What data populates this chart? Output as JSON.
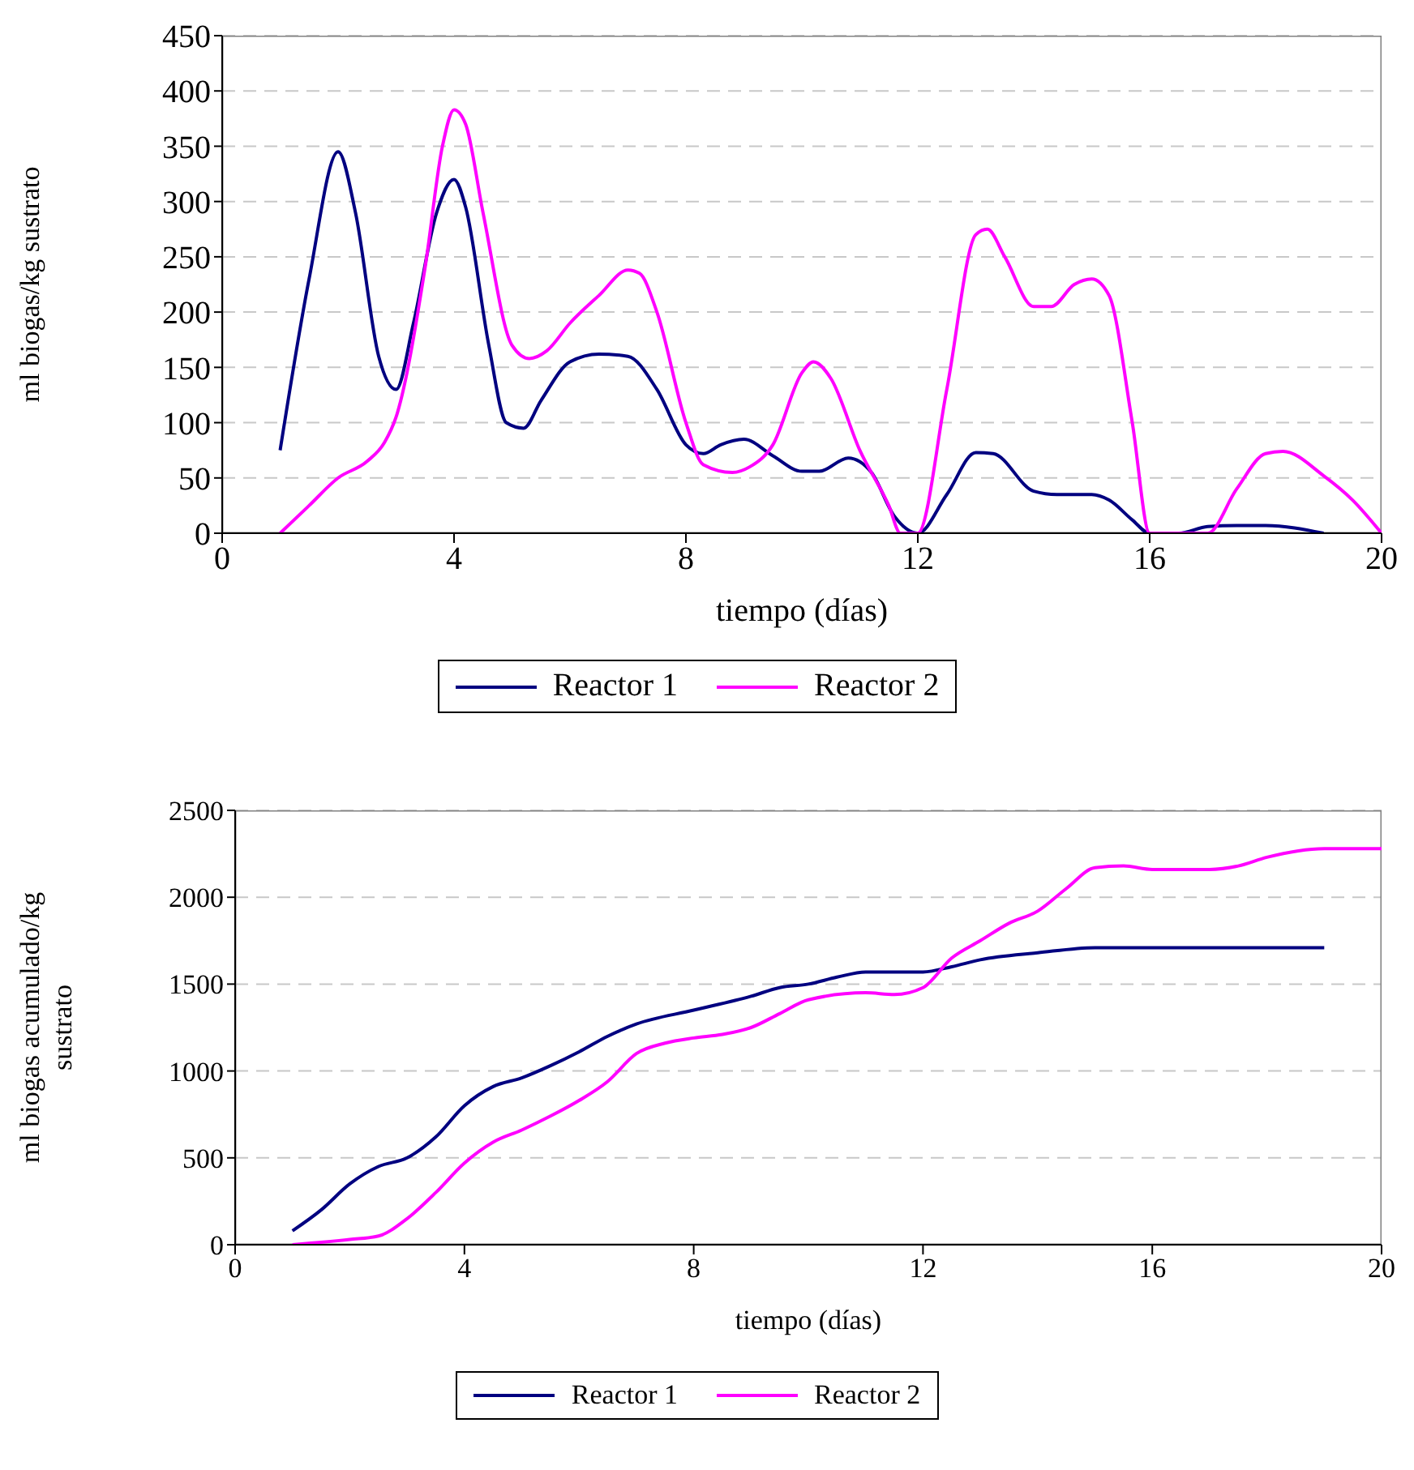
{
  "chart_data": [
    {
      "type": "line",
      "xlabel": "tiempo (días)",
      "ylabel": "ml biogas/kg sustrato",
      "xlim": [
        0,
        20
      ],
      "xticks": [
        0,
        4,
        8,
        12,
        16,
        20
      ],
      "ylim": [
        0,
        450
      ],
      "yticks": [
        0,
        50,
        100,
        150,
        200,
        250,
        300,
        350,
        400,
        450
      ],
      "grid": "y",
      "legend": "bottom",
      "marker": "none",
      "line_style": "solid",
      "series": [
        {
          "name": "Reactor 1",
          "color": "#000080",
          "x": [
            1,
            1.5,
            2,
            2.3,
            2.7,
            3,
            3.3,
            3.7,
            4,
            4.2,
            4.6,
            4.9,
            5.2,
            5.5,
            6,
            6.5,
            7,
            7.5,
            8,
            8.3,
            8.6,
            9,
            9.5,
            10,
            10.3,
            10.8,
            11.2,
            11.6,
            12,
            12.5,
            13,
            13.3,
            14,
            14.4,
            15,
            15.3,
            15.7,
            16,
            16.5,
            17,
            17.5,
            18,
            19
          ],
          "values": [
            75,
            230,
            345,
            290,
            160,
            130,
            190,
            290,
            320,
            295,
            170,
            100,
            95,
            120,
            155,
            162,
            160,
            130,
            80,
            72,
            80,
            85,
            70,
            56,
            56,
            68,
            55,
            15,
            0,
            35,
            73,
            72,
            38,
            35,
            35,
            30,
            12,
            0,
            0,
            6,
            7,
            7,
            0
          ]
        },
        {
          "name": "Reactor 2",
          "color": "#ff00ff",
          "x": [
            1,
            1.5,
            2,
            2.5,
            2.8,
            3,
            3.5,
            3.8,
            4,
            4.2,
            4.5,
            5,
            5.3,
            5.6,
            6,
            6.5,
            7,
            7.2,
            7.5,
            8,
            8.3,
            8.8,
            9.1,
            9.5,
            10,
            10.2,
            10.5,
            11,
            11.5,
            11.7,
            12,
            12.5,
            13,
            13.2,
            13.5,
            14,
            14.3,
            14.7,
            15,
            15.3,
            15.7,
            16,
            16.5,
            17,
            17.5,
            18,
            18.3,
            19,
            19.5,
            20
          ],
          "values": [
            0,
            25,
            50,
            65,
            82,
            105,
            240,
            350,
            383,
            370,
            290,
            170,
            158,
            165,
            190,
            215,
            238,
            235,
            200,
            100,
            62,
            55,
            60,
            80,
            145,
            155,
            140,
            75,
            25,
            0,
            0,
            130,
            270,
            275,
            250,
            205,
            205,
            225,
            230,
            215,
            100,
            0,
            0,
            0,
            40,
            72,
            74,
            52,
            30,
            0
          ]
        }
      ]
    },
    {
      "type": "line",
      "xlabel": "tiempo (días)",
      "ylabel": "ml biogas acumulado/kg sustrato",
      "xlim": [
        0,
        20
      ],
      "xticks": [
        0,
        4,
        8,
        12,
        16,
        20
      ],
      "ylim": [
        0,
        2500
      ],
      "yticks": [
        0,
        500,
        1000,
        1500,
        2000,
        2500
      ],
      "grid": "y",
      "legend": "bottom",
      "marker": "none",
      "line_style": "solid",
      "series": [
        {
          "name": "Reactor 1",
          "color": "#000080",
          "x": [
            1,
            1.5,
            2,
            2.5,
            3,
            3.5,
            4,
            4.5,
            5,
            5.5,
            6,
            6.5,
            7,
            8,
            9,
            9.5,
            10,
            10.5,
            11,
            12,
            12.5,
            13,
            14,
            15,
            16,
            17,
            18,
            19
          ],
          "values": [
            80,
            200,
            350,
            450,
            500,
            620,
            800,
            910,
            960,
            1030,
            1110,
            1200,
            1270,
            1350,
            1430,
            1480,
            1500,
            1540,
            1570,
            1570,
            1600,
            1640,
            1680,
            1710,
            1710,
            1710,
            1710,
            1710
          ]
        },
        {
          "name": "Reactor 2",
          "color": "#ff00ff",
          "x": [
            1,
            2,
            2.5,
            3,
            3.5,
            4,
            4.5,
            5,
            5.5,
            6,
            6.5,
            7,
            7.5,
            8,
            8.5,
            9,
            9.5,
            10,
            11,
            11.5,
            12,
            12.5,
            13,
            13.5,
            14,
            14.5,
            15,
            15.5,
            16,
            17,
            17.5,
            18,
            19,
            20
          ],
          "values": [
            0,
            30,
            50,
            150,
            300,
            470,
            590,
            660,
            740,
            830,
            940,
            1100,
            1160,
            1190,
            1210,
            1250,
            1330,
            1410,
            1450,
            1440,
            1480,
            1650,
            1750,
            1850,
            1920,
            2050,
            2170,
            2180,
            2160,
            2160,
            2180,
            2230,
            2280,
            2280
          ]
        }
      ]
    }
  ]
}
